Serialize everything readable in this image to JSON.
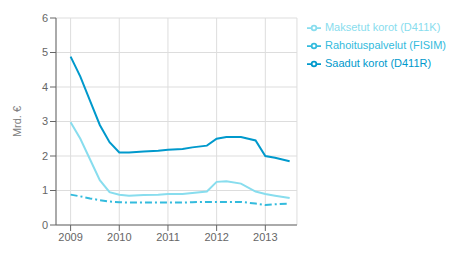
{
  "chart_data": {
    "type": "line",
    "ylabel": "Mrd. €",
    "x": [
      2009.0,
      2009.2,
      2009.4,
      2009.6,
      2009.8,
      2010.0,
      2010.2,
      2010.5,
      2010.8,
      2011.0,
      2011.3,
      2011.5,
      2011.8,
      2012.0,
      2012.2,
      2012.5,
      2012.8,
      2013.0,
      2013.2,
      2013.5
    ],
    "series": [
      {
        "name": "Saadut korot (D411R)",
        "color": "#0099CC",
        "line_style": "solid",
        "values": [
          4.88,
          4.3,
          3.6,
          2.9,
          2.4,
          2.1,
          2.1,
          2.13,
          2.15,
          2.18,
          2.2,
          2.25,
          2.3,
          2.5,
          2.55,
          2.55,
          2.45,
          2.0,
          1.95,
          1.85
        ]
      },
      {
        "name": "Maksetut korot (D411K)",
        "color": "#88DDEE",
        "line_style": "solid",
        "values": [
          2.98,
          2.5,
          1.9,
          1.3,
          0.95,
          0.88,
          0.85,
          0.87,
          0.88,
          0.9,
          0.9,
          0.93,
          0.97,
          1.25,
          1.27,
          1.2,
          0.97,
          0.9,
          0.85,
          0.78
        ]
      },
      {
        "name": "Rahoituspalvelut (FISIM)",
        "color": "#33BBDD",
        "line_style": "dashdot",
        "values": [
          0.88,
          0.83,
          0.77,
          0.72,
          0.68,
          0.66,
          0.65,
          0.65,
          0.65,
          0.65,
          0.65,
          0.66,
          0.67,
          0.67,
          0.67,
          0.67,
          0.62,
          0.58,
          0.6,
          0.62
        ]
      }
    ],
    "xlim": [
      2008.7,
      2013.65
    ],
    "xticks": [
      2009,
      2010,
      2011,
      2012,
      2013
    ],
    "ylim": [
      0,
      6
    ],
    "yticks": [
      0,
      1,
      2,
      3,
      4,
      5,
      6
    ],
    "grid": true,
    "legend": "right"
  }
}
